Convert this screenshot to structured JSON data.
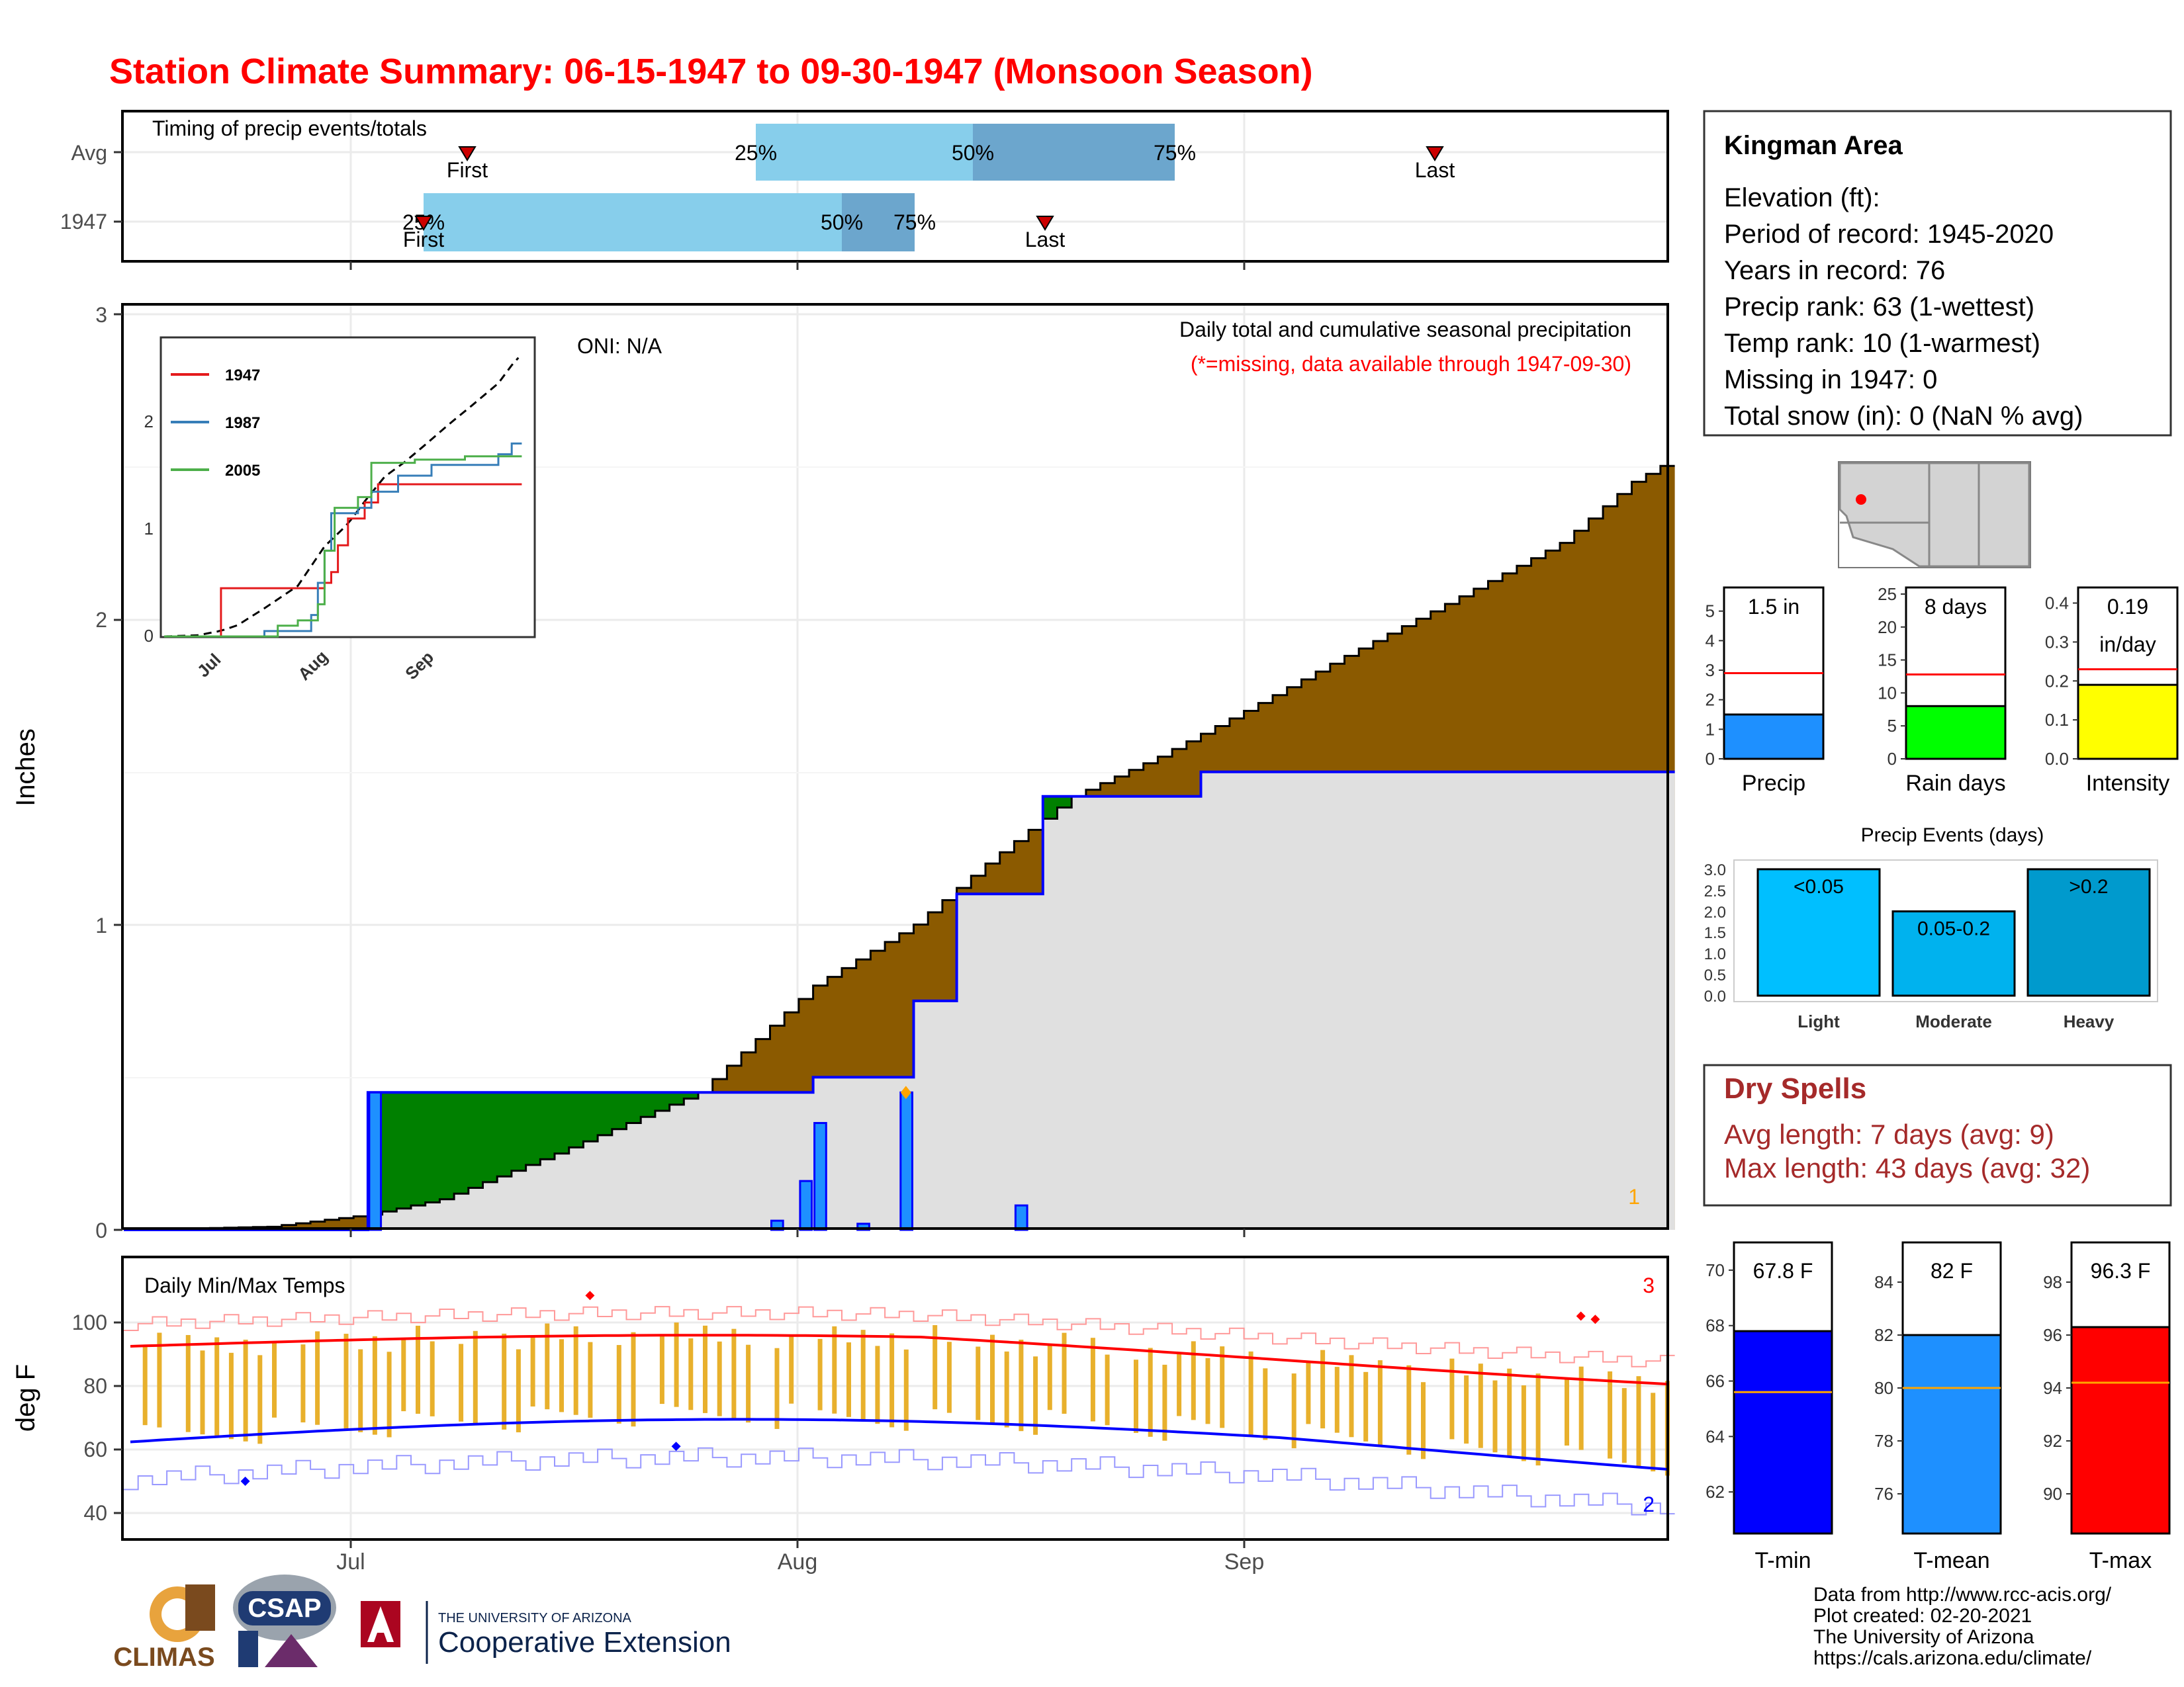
{
  "title": "Station Climate Summary: 06-15-1947 to 09-30-1947 (Monsoon Season)",
  "timing_panel": {
    "label": "Timing of precip events/totals",
    "rows": [
      {
        "name": "Avg",
        "first_label": "First",
        "last_label": "Last",
        "p25": "25%",
        "p50": "50%",
        "p75": "75%"
      },
      {
        "name": "1947",
        "first_label": "First",
        "last_label": "Last",
        "p25": "25%",
        "p50": "50%",
        "p75": "75%"
      }
    ]
  },
  "precip_panel": {
    "ylabel": "Inches",
    "yticks": [
      "0",
      "1",
      "2",
      "3"
    ],
    "oni": "ONI: N/A",
    "note1": "Daily total and cumulative seasonal precipitation",
    "note2": "(*=missing, data available through 1947-09-30)",
    "count_label": "1"
  },
  "inset": {
    "yticks": [
      "0",
      "1",
      "2"
    ],
    "xticks": [
      "Jul",
      "Aug",
      "Sep"
    ],
    "legend": [
      {
        "name": "1947",
        "color": "#e41a1c"
      },
      {
        "name": "1987",
        "color": "#377eb8"
      },
      {
        "name": "2005",
        "color": "#4daf4a"
      }
    ]
  },
  "temp_panel": {
    "ylabel": "deg F",
    "label": "Daily Min/Max Temps",
    "yticks": [
      "40",
      "60",
      "80",
      "100"
    ],
    "max_count": "3",
    "min_count": "2"
  },
  "xaxis": {
    "ticks": [
      "Jul",
      "Aug",
      "Sep"
    ]
  },
  "info_box": {
    "station": "Kingman Area",
    "lines": [
      "Elevation (ft):",
      "Period of record: 1945-2020",
      "Years in record: 76",
      "Precip rank: 63 (1-wettest)",
      "Temp rank: 10 (1-warmest)",
      "Missing in 1947: 0",
      "Total snow (in): 0 (NaN % avg)"
    ]
  },
  "mini_bars": [
    {
      "label": "Precip",
      "value_text": "1.5 in",
      "value_text2": "",
      "value": 1.5,
      "avg": 2.9,
      "max": 5.8,
      "ticks": [
        "0",
        "1",
        "2",
        "3",
        "4",
        "5"
      ],
      "color": "#1e90ff"
    },
    {
      "label": "Rain days",
      "value_text": "8 days",
      "value_text2": "",
      "value": 8,
      "avg": 12.8,
      "max": 26,
      "ticks": [
        "0",
        "5",
        "10",
        "15",
        "20",
        "25"
      ],
      "color": "#00ff00"
    },
    {
      "label": "Intensity",
      "value_text": "0.19",
      "value_text2": "in/day",
      "value": 0.19,
      "avg": 0.23,
      "max": 0.44,
      "ticks": [
        "0.0",
        "0.1",
        "0.2",
        "0.3",
        "0.4"
      ],
      "color": "#ffff00"
    }
  ],
  "events_chart": {
    "title": "Precip Events (days)",
    "yticks": [
      "0.0",
      "0.5",
      "1.0",
      "1.5",
      "2.0",
      "2.5",
      "3.0"
    ],
    "bars": [
      {
        "category": "Light",
        "bin": "<0.05",
        "value": 3,
        "color": "#00bfff"
      },
      {
        "category": "Moderate",
        "bin": "0.05-0.2",
        "value": 2,
        "color": "#00b2ee"
      },
      {
        "category": "Heavy",
        "bin": ">0.2",
        "value": 3,
        "color": "#009acd"
      }
    ]
  },
  "dry_spells": {
    "title": "Dry Spells",
    "avg_line": "Avg length: 7 days (avg: 9)",
    "max_line": "Max length: 43 days (avg: 32)"
  },
  "temp_bars": [
    {
      "label": "T-min",
      "value_text": "67.8 F",
      "value": 67.8,
      "avg": 65.6,
      "ymin": 60.5,
      "ymax": 71,
      "ticks": [
        "62",
        "64",
        "66",
        "68",
        "70"
      ],
      "color": "#0000ff"
    },
    {
      "label": "T-mean",
      "value_text": "82 F",
      "value": 82,
      "avg": 80,
      "ymin": 74.5,
      "ymax": 85.5,
      "ticks": [
        "76",
        "78",
        "80",
        "82",
        "84"
      ],
      "color": "#1e90ff"
    },
    {
      "label": "T-max",
      "value_text": "96.3 F",
      "value": 96.3,
      "avg": 94.2,
      "ymin": 88.5,
      "ymax": 99.5,
      "ticks": [
        "90",
        "92",
        "94",
        "96",
        "98"
      ],
      "color": "#ff0000"
    }
  ],
  "footer": {
    "lines": [
      "Data from http://www.rcc-acis.org/",
      "Plot created: 02-20-2021",
      "The University of Arizona",
      "https://cals.arizona.edu/climate/"
    ]
  },
  "logos": {
    "climas": "CLIMAS",
    "csap": "CSAP",
    "ua_small": "THE UNIVERSITY OF ARIZONA",
    "ua_big": "Cooperative Extension"
  },
  "chart_data": {
    "type": "area",
    "title": "Station Climate Summary: 06-15-1947 to 09-30-1947 (Monsoon Season)",
    "ylabel": "Inches",
    "ylim": [
      0,
      3
    ],
    "avg_cumulative": [
      [
        0,
        0
      ],
      [
        10,
        0.01
      ],
      [
        17,
        0.05
      ],
      [
        22,
        0.1
      ],
      [
        30,
        0.25
      ],
      [
        40,
        0.45
      ],
      [
        48,
        0.8
      ],
      [
        55,
        1.0
      ],
      [
        60,
        1.2
      ],
      [
        66,
        1.42
      ],
      [
        72,
        1.55
      ],
      [
        78,
        1.7
      ],
      [
        85,
        1.88
      ],
      [
        92,
        2.05
      ],
      [
        100,
        2.25
      ],
      [
        105,
        2.45
      ],
      [
        110,
        2.58
      ],
      [
        120,
        2.66
      ],
      [
        130,
        2.74
      ]
    ],
    "cumulative_1947": [
      [
        0,
        0
      ],
      [
        17,
        0.45
      ],
      [
        48,
        0.5
      ],
      [
        55,
        0.75
      ],
      [
        58,
        1.1
      ],
      [
        64,
        1.42
      ],
      [
        75,
        1.5
      ],
      [
        108,
        1.5
      ]
    ],
    "daily_1947": [
      [
        17,
        0.45
      ],
      [
        45,
        0.03
      ],
      [
        47,
        0.16
      ],
      [
        48,
        0.35
      ],
      [
        51,
        0.02
      ],
      [
        54,
        0.45
      ],
      [
        62,
        0.08
      ]
    ],
    "temps": {
      "avg_max_start": 93,
      "avg_max_end": 87,
      "avg_min_start": 61,
      "avg_min_end": 56
    }
  }
}
